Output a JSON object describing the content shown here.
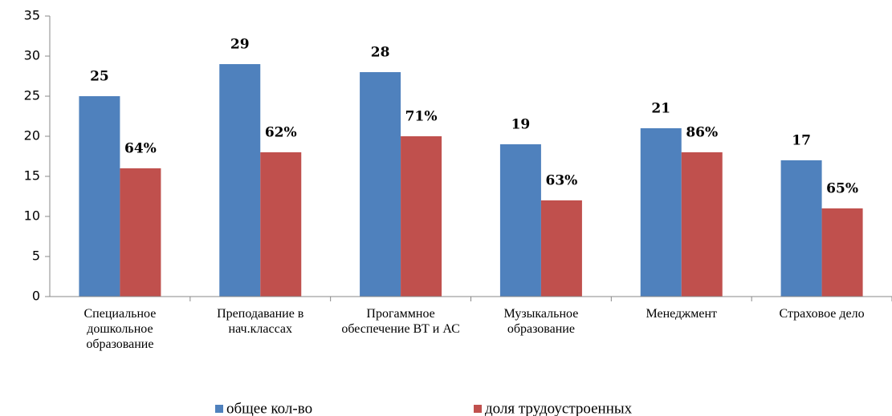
{
  "chart_data": {
    "type": "bar",
    "categories": [
      "Специальное дошкольное образование",
      "Преподавание в нач.классах",
      "Прогаммное обеспечение ВТ и АС",
      "Музыкальное образование",
      "Менеджмент",
      "Страховое дело"
    ],
    "series": [
      {
        "name": "общее кол-во",
        "color": "#4f81bd",
        "values": [
          25,
          29,
          28,
          19,
          21,
          17
        ]
      },
      {
        "name": "доля трудоустроенных",
        "color": "#c0504d",
        "values": [
          16,
          18,
          20,
          12,
          18,
          11
        ],
        "annotations": [
          "64%",
          "62%",
          "71%",
          "63%",
          "86%",
          "65%"
        ]
      }
    ],
    "ylim": [
      0,
      35
    ],
    "yticks": [
      0,
      5,
      10,
      15,
      20,
      25,
      30,
      35
    ],
    "grid": false,
    "legend": "bottom"
  }
}
